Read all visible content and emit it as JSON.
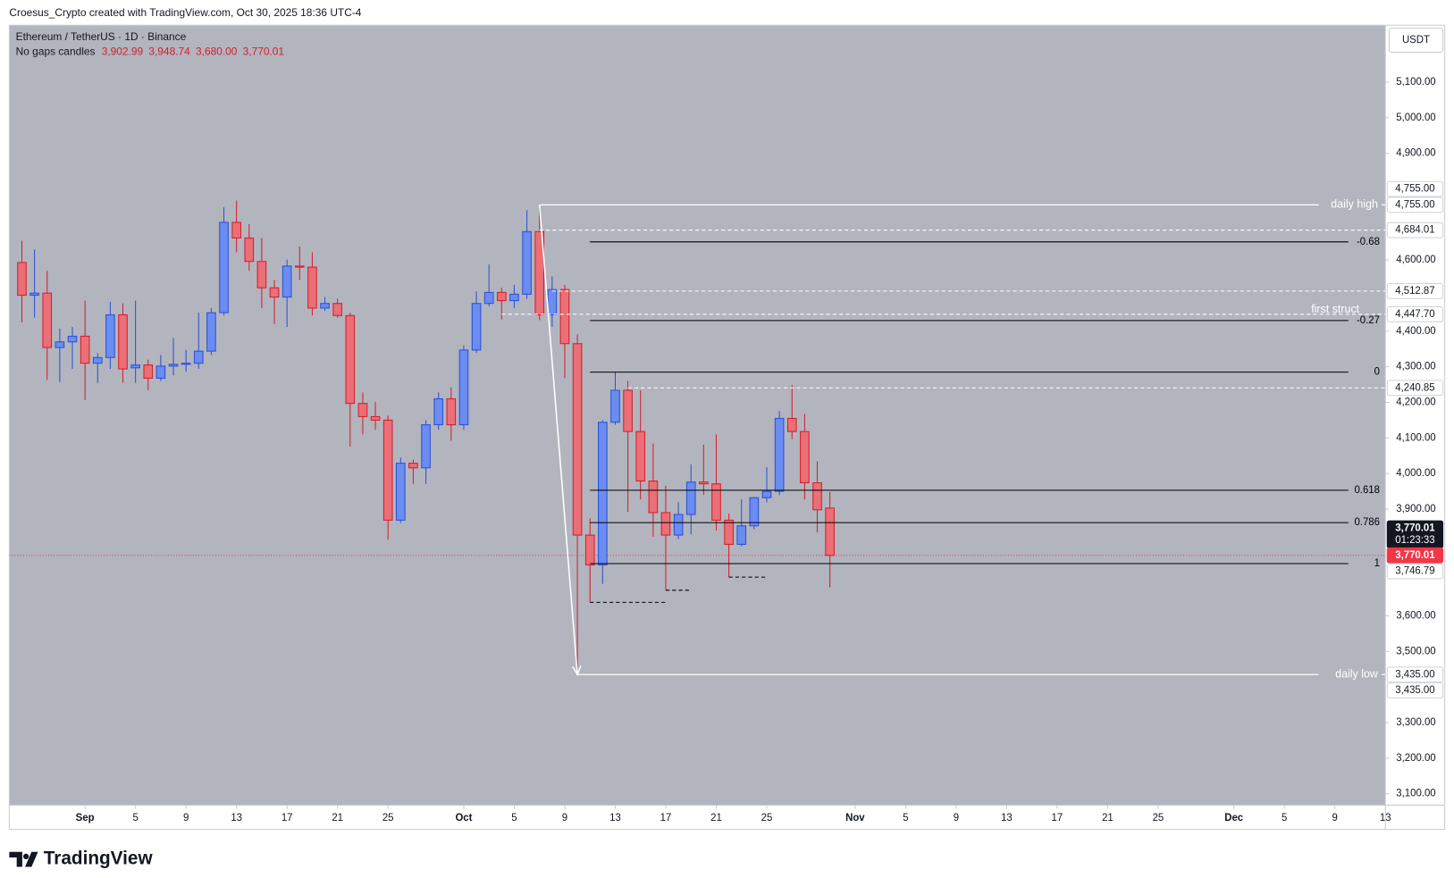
{
  "header": {
    "credit": "Croesus_Crypto created with TradingView.com, Oct 30, 2025 18:36 UTC-4",
    "logo": "TradingView"
  },
  "chart_data": {
    "type": "candlestick",
    "title": "Ethereum / TetherUS · 1D · Binance",
    "subtitle": "No gaps candles",
    "ohlc_labels": [
      "3,902.99",
      "3,948.74",
      "3,680.00",
      "3,770.01"
    ],
    "currency": "USDT",
    "countdown": "01:23:33",
    "up_color": "#6b8cf0",
    "up_border": "#2b50d8",
    "down_color": "#ea6f77",
    "down_border": "#d91c2b",
    "background": "#b2b5be",
    "grid": false,
    "x": [
      "2025-08-27",
      "2025-08-28",
      "2025-08-29",
      "2025-08-30",
      "2025-08-31",
      "2025-09-01",
      "2025-09-02",
      "2025-09-03",
      "2025-09-04",
      "2025-09-05",
      "2025-09-06",
      "2025-09-07",
      "2025-09-08",
      "2025-09-09",
      "2025-09-10",
      "2025-09-11",
      "2025-09-12",
      "2025-09-13",
      "2025-09-14",
      "2025-09-15",
      "2025-09-16",
      "2025-09-17",
      "2025-09-18",
      "2025-09-19",
      "2025-09-20",
      "2025-09-21",
      "2025-09-22",
      "2025-09-23",
      "2025-09-24",
      "2025-09-25",
      "2025-09-26",
      "2025-09-27",
      "2025-09-28",
      "2025-09-29",
      "2025-09-30",
      "2025-10-01",
      "2025-10-02",
      "2025-10-03",
      "2025-10-04",
      "2025-10-05",
      "2025-10-06",
      "2025-10-07",
      "2025-10-08",
      "2025-10-09",
      "2025-10-10",
      "2025-10-11",
      "2025-10-12",
      "2025-10-13",
      "2025-10-14",
      "2025-10-15",
      "2025-10-16",
      "2025-10-17",
      "2025-10-18",
      "2025-10-19",
      "2025-10-20",
      "2025-10-21",
      "2025-10-22",
      "2025-10-23",
      "2025-10-24",
      "2025-10-25",
      "2025-10-26",
      "2025-10-27",
      "2025-10-28",
      "2025-10-29",
      "2025-10-30"
    ],
    "open": [
      4593,
      4501,
      4507,
      4354,
      4370,
      4386,
      4310,
      4326,
      4446,
      4297,
      4305,
      4268,
      4302,
      4307,
      4310,
      4344,
      4452,
      4706,
      4662,
      4596,
      4522,
      4496,
      4583,
      4580,
      4465,
      4478,
      4444,
      4197,
      4160,
      4150,
      3869,
      4029,
      4016,
      4137,
      4210,
      4137,
      4347,
      4478,
      4509,
      4486,
      4504,
      4680,
      4446,
      4517,
      4365,
      3827,
      3743,
      4144,
      4234,
      4118,
      3979,
      3890,
      3827,
      3885,
      3976,
      3971,
      3869,
      3801,
      3853,
      3932,
      3950,
      4155,
      4118,
      3974,
      3902.99
    ],
    "high": [
      4654,
      4630,
      4570,
      4407,
      4412,
      4486,
      4339,
      4483,
      4478,
      4486,
      4320,
      4333,
      4381,
      4347,
      4452,
      4465,
      4748,
      4767,
      4701,
      4662,
      4544,
      4601,
      4638,
      4622,
      4496,
      4491,
      4452,
      4228,
      4202,
      4163,
      4045,
      4039,
      4150,
      4228,
      4242,
      4360,
      4512,
      4588,
      4522,
      4530,
      4740,
      4755,
      4554,
      4530,
      4391,
      3874,
      4150,
      4286,
      4260,
      4234,
      4084,
      3966,
      3919,
      4026,
      4081,
      4110,
      3887,
      3927,
      3934,
      4018,
      4176,
      4249,
      4168,
      4034,
      3948.74
    ],
    "low": [
      4425,
      4438,
      4263,
      4257,
      4294,
      4207,
      4255,
      4294,
      4255,
      4255,
      4234,
      4260,
      4276,
      4286,
      4294,
      4333,
      4444,
      4622,
      4570,
      4465,
      4420,
      4412,
      4544,
      4444,
      4457,
      4438,
      4076,
      4110,
      4123,
      3814,
      3861,
      3971,
      3971,
      4123,
      4092,
      4123,
      4339,
      4470,
      4433,
      4465,
      4491,
      4431,
      4412,
      4268,
      3435,
      3638,
      3690,
      4137,
      3892,
      3927,
      3822,
      3672,
      3816,
      3829,
      3940,
      3840,
      3709,
      3795,
      3843,
      3919,
      3940,
      4097,
      3927,
      3835,
      3680
    ],
    "close": [
      4501,
      4507,
      4354,
      4370,
      4386,
      4310,
      4326,
      4446,
      4294,
      4305,
      4268,
      4302,
      4307,
      4310,
      4344,
      4452,
      4706,
      4662,
      4596,
      4522,
      4496,
      4583,
      4580,
      4465,
      4478,
      4444,
      4197,
      4160,
      4150,
      3869,
      4029,
      4016,
      4137,
      4210,
      4137,
      4347,
      4478,
      4509,
      4486,
      4504,
      4680,
      4446,
      4517,
      4365,
      3827,
      3743,
      4144,
      4234,
      4118,
      3979,
      3890,
      3827,
      3885,
      3976,
      3971,
      3869,
      3801,
      3853,
      3932,
      3950,
      4155,
      4118,
      3974,
      3898,
      3770.01
    ],
    "xlim": [
      "2025-08-26",
      "2025-12-13"
    ],
    "xticks": [
      {
        "value": "2025-09-01",
        "label": "Sep"
      },
      {
        "value": "2025-09-05",
        "label": "5"
      },
      {
        "value": "2025-09-09",
        "label": "9"
      },
      {
        "value": "2025-09-13",
        "label": "13"
      },
      {
        "value": "2025-09-17",
        "label": "17"
      },
      {
        "value": "2025-09-21",
        "label": "21"
      },
      {
        "value": "2025-09-25",
        "label": "25"
      },
      {
        "value": "2025-10-01",
        "label": "Oct"
      },
      {
        "value": "2025-10-05",
        "label": "5"
      },
      {
        "value": "2025-10-09",
        "label": "9"
      },
      {
        "value": "2025-10-13",
        "label": "13"
      },
      {
        "value": "2025-10-17",
        "label": "17"
      },
      {
        "value": "2025-10-21",
        "label": "21"
      },
      {
        "value": "2025-10-25",
        "label": "25"
      },
      {
        "value": "2025-11-01",
        "label": "Nov"
      },
      {
        "value": "2025-11-05",
        "label": "5"
      },
      {
        "value": "2025-11-09",
        "label": "9"
      },
      {
        "value": "2025-11-13",
        "label": "13"
      },
      {
        "value": "2025-11-17",
        "label": "17"
      },
      {
        "value": "2025-11-21",
        "label": "21"
      },
      {
        "value": "2025-11-25",
        "label": "25"
      },
      {
        "value": "2025-12-01",
        "label": "Dec"
      },
      {
        "value": "2025-12-05",
        "label": "5"
      },
      {
        "value": "2025-12-09",
        "label": "9"
      },
      {
        "value": "2025-12-13",
        "label": "13"
      }
    ],
    "ylim": [
      3068,
      5260
    ],
    "yticks": [
      {
        "value": 5100,
        "label": "5,100.00"
      },
      {
        "value": 5000,
        "label": "5,000.00"
      },
      {
        "value": 4900,
        "label": "4,900.00"
      },
      {
        "value": 4600,
        "label": "4,600.00"
      },
      {
        "value": 4400,
        "label": "4,400.00"
      },
      {
        "value": 4300,
        "label": "4,300.00"
      },
      {
        "value": 4200,
        "label": "4,200.00"
      },
      {
        "value": 4100,
        "label": "4,100.00"
      },
      {
        "value": 4000,
        "label": "4,000.00"
      },
      {
        "value": 3900,
        "label": "3,900.00"
      },
      {
        "value": 3600,
        "label": "3,600.00"
      },
      {
        "value": 3500,
        "label": "3,500.00"
      },
      {
        "value": 3300,
        "label": "3,300.00"
      },
      {
        "value": 3200,
        "label": "3,200.00"
      },
      {
        "value": 3100,
        "label": "3,100.00"
      }
    ],
    "levels": [
      {
        "label": "daily high",
        "value": 4755,
        "start": "2025-10-07",
        "color": "#ffffff"
      },
      {
        "label": "daily low",
        "value": 3435,
        "start": "2025-10-10",
        "color": "#ffffff"
      }
    ],
    "dashed_levels": [
      {
        "value": 4684.01,
        "start": "2025-10-07"
      },
      {
        "value": 4512.87,
        "start": "2025-10-08"
      },
      {
        "value": 4447.7,
        "start": "2025-10-04",
        "label": "first struct"
      },
      {
        "value": 4240.85,
        "start": "2025-10-14"
      }
    ],
    "fib": {
      "start": "2025-10-11",
      "color": "#000000",
      "levels": [
        {
          "label": "-0.68",
          "value": 4651
        },
        {
          "label": "-0.27",
          "value": 4430
        },
        {
          "label": "0",
          "value": 4285
        },
        {
          "label": "0.618",
          "value": 3953
        },
        {
          "label": "0.786",
          "value": 3862
        },
        {
          "label": "1",
          "value": 3746.79
        }
      ]
    },
    "support_lines": [
      {
        "value": 3638,
        "start": "2025-10-11",
        "end": "2025-10-17"
      },
      {
        "value": 3672,
        "start": "2025-10-17",
        "end": "2025-10-19"
      },
      {
        "value": 3709,
        "start": "2025-10-22",
        "end": "2025-10-25"
      }
    ],
    "price_labels": [
      {
        "value": 4755,
        "label": "4,755.00",
        "style": "white"
      },
      {
        "value": 4755,
        "label": "4,755.00",
        "style": "white"
      },
      {
        "value": 4684.01,
        "label": "4,684.01",
        "style": "white"
      },
      {
        "value": 4512.87,
        "label": "4,512.87",
        "style": "white"
      },
      {
        "value": 4447.7,
        "label": "4,447.70",
        "style": "white"
      },
      {
        "value": 4240.85,
        "label": "4,240.85",
        "style": "white"
      },
      {
        "value": 3770.01,
        "label": "3,770.01",
        "style": "dark"
      },
      {
        "value": 3770.01,
        "label": "3,770.01",
        "style": "red"
      },
      {
        "value": 3746.79,
        "label": "3,746.79",
        "style": "white"
      },
      {
        "value": 3435,
        "label": "3,435.00",
        "style": "white"
      },
      {
        "value": 3435,
        "label": "3,435.00",
        "style": "white"
      }
    ]
  }
}
